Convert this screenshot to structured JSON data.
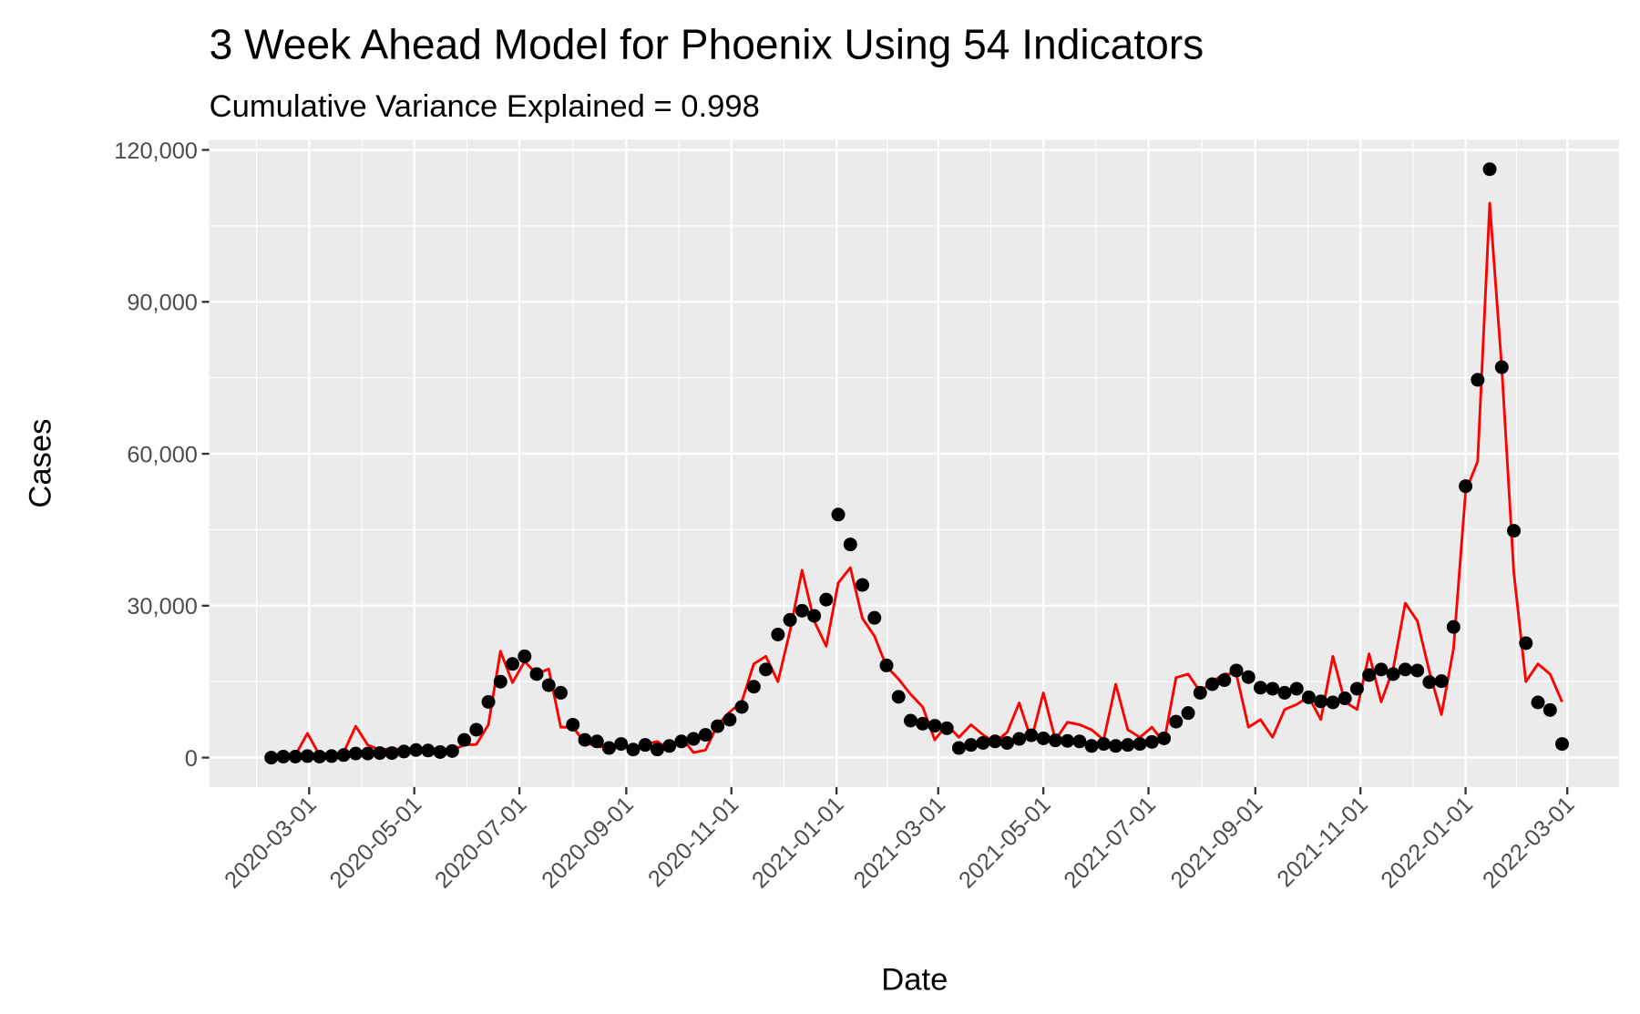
{
  "chart_data": {
    "type": "line",
    "title": "3 Week Ahead Model for Phoenix Using 54 Indicators",
    "subtitle": "Cumulative Variance Explained = 0.998",
    "x_label": "Date",
    "y_label": "Cases",
    "grid": true,
    "x": [
      "2020-02-08",
      "2020-02-15",
      "2020-02-22",
      "2020-02-29",
      "2020-03-07",
      "2020-03-14",
      "2020-03-21",
      "2020-03-28",
      "2020-04-04",
      "2020-04-11",
      "2020-04-18",
      "2020-04-25",
      "2020-05-02",
      "2020-05-09",
      "2020-05-16",
      "2020-05-23",
      "2020-05-30",
      "2020-06-06",
      "2020-06-13",
      "2020-06-20",
      "2020-06-27",
      "2020-07-04",
      "2020-07-11",
      "2020-07-18",
      "2020-07-25",
      "2020-08-01",
      "2020-08-08",
      "2020-08-15",
      "2020-08-22",
      "2020-08-29",
      "2020-09-05",
      "2020-09-12",
      "2020-09-19",
      "2020-09-26",
      "2020-10-03",
      "2020-10-10",
      "2020-10-17",
      "2020-10-24",
      "2020-10-31",
      "2020-11-07",
      "2020-11-14",
      "2020-11-21",
      "2020-11-28",
      "2020-12-05",
      "2020-12-12",
      "2020-12-19",
      "2020-12-26",
      "2021-01-02",
      "2021-01-09",
      "2021-01-16",
      "2021-01-23",
      "2021-01-30",
      "2021-02-06",
      "2021-02-13",
      "2021-02-20",
      "2021-02-27",
      "2021-03-06",
      "2021-03-13",
      "2021-03-20",
      "2021-03-27",
      "2021-04-03",
      "2021-04-10",
      "2021-04-17",
      "2021-04-24",
      "2021-05-01",
      "2021-05-08",
      "2021-05-15",
      "2021-05-22",
      "2021-05-29",
      "2021-06-05",
      "2021-06-12",
      "2021-06-19",
      "2021-06-26",
      "2021-07-03",
      "2021-07-10",
      "2021-07-17",
      "2021-07-24",
      "2021-07-31",
      "2021-08-07",
      "2021-08-14",
      "2021-08-21",
      "2021-08-28",
      "2021-09-04",
      "2021-09-11",
      "2021-09-18",
      "2021-09-25",
      "2021-10-02",
      "2021-10-09",
      "2021-10-16",
      "2021-10-23",
      "2021-10-30",
      "2021-11-06",
      "2021-11-13",
      "2021-11-20",
      "2021-11-27",
      "2021-12-04",
      "2021-12-11",
      "2021-12-18",
      "2021-12-25",
      "2022-01-01",
      "2022-01-08",
      "2022-01-15",
      "2022-01-22",
      "2022-01-29",
      "2022-02-05",
      "2022-02-12",
      "2022-02-19",
      "2022-02-26"
    ],
    "xlim": [
      "2020-01-03",
      "2022-03-31"
    ],
    "xticks": [
      "2020-03-01",
      "2020-05-01",
      "2020-07-01",
      "2020-09-01",
      "2020-11-01",
      "2021-01-01",
      "2021-03-01",
      "2021-05-01",
      "2021-07-01",
      "2021-09-01",
      "2021-11-01",
      "2022-01-01",
      "2022-03-01"
    ],
    "ylim": [
      -5810,
      122010
    ],
    "yticks": [
      0,
      {
        "value": 30000,
        "label": "30,000"
      },
      {
        "value": 60000,
        "label": "60,000"
      },
      {
        "value": 90000,
        "label": "90,000"
      },
      {
        "value": 120000,
        "label": "120,000"
      }
    ],
    "series": [
      {
        "style": "points",
        "color": "#000000",
        "values": [
          0,
          200,
          200,
          300,
          200,
          300,
          500,
          800,
          800,
          900,
          900,
          1200,
          1500,
          1400,
          1100,
          1300,
          3500,
          5500,
          11000,
          15000,
          18500,
          20000,
          16500,
          14300,
          12800,
          6500,
          3500,
          3200,
          1900,
          2700,
          1600,
          2500,
          1600,
          2300,
          3200,
          3700,
          4500,
          6200,
          7500,
          10000,
          14000,
          17400,
          24300,
          27200,
          29000,
          28000,
          31200,
          48000,
          42100,
          34100,
          27600,
          18200,
          12000,
          7300,
          6700,
          6300,
          5800,
          1900,
          2500,
          2900,
          3200,
          2900,
          3700,
          4400,
          3800,
          3400,
          3300,
          3200,
          2300,
          2700,
          2300,
          2500,
          2700,
          3100,
          3800,
          7100,
          8800,
          12800,
          14500,
          15300,
          17200,
          15900,
          13800,
          13600,
          12800,
          13600,
          11900,
          11100,
          10900,
          11700,
          13600,
          16300,
          17400,
          16500,
          17400,
          17200,
          14900,
          15100,
          25800,
          53600,
          74600,
          116200,
          77100,
          44800,
          22600,
          10900,
          9400,
          2700
        ]
      },
      {
        "style": "line",
        "color": "#ff0000",
        "values": [
          0,
          0,
          500,
          4800,
          500,
          300,
          1000,
          6200,
          2500,
          1500,
          1800,
          1500,
          1500,
          1600,
          1000,
          1500,
          2500,
          2600,
          6500,
          21000,
          14800,
          19000,
          16500,
          17500,
          6000,
          6000,
          3000,
          2200,
          2000,
          2200,
          1800,
          2600,
          3200,
          1500,
          4000,
          1000,
          1500,
          6500,
          9000,
          11000,
          18500,
          20000,
          15000,
          25000,
          37000,
          27000,
          22000,
          34500,
          37500,
          27500,
          24000,
          18000,
          15500,
          12500,
          10000,
          3500,
          6500,
          4000,
          6500,
          4500,
          3000,
          5000,
          10800,
          3500,
          12800,
          3500,
          7000,
          6500,
          5500,
          3500,
          14500,
          5500,
          4000,
          6000,
          3000,
          15800,
          16500,
          13000,
          15000,
          16500,
          16500,
          6000,
          7500,
          4000,
          9500,
          10500,
          12000,
          7500,
          20000,
          11000,
          9500,
          20500,
          11000,
          17500,
          30500,
          27000,
          17000,
          8500,
          21500,
          52500,
          58500,
          109500,
          77000,
          36500,
          15000,
          18500,
          16500,
          11000
        ]
      }
    ]
  }
}
